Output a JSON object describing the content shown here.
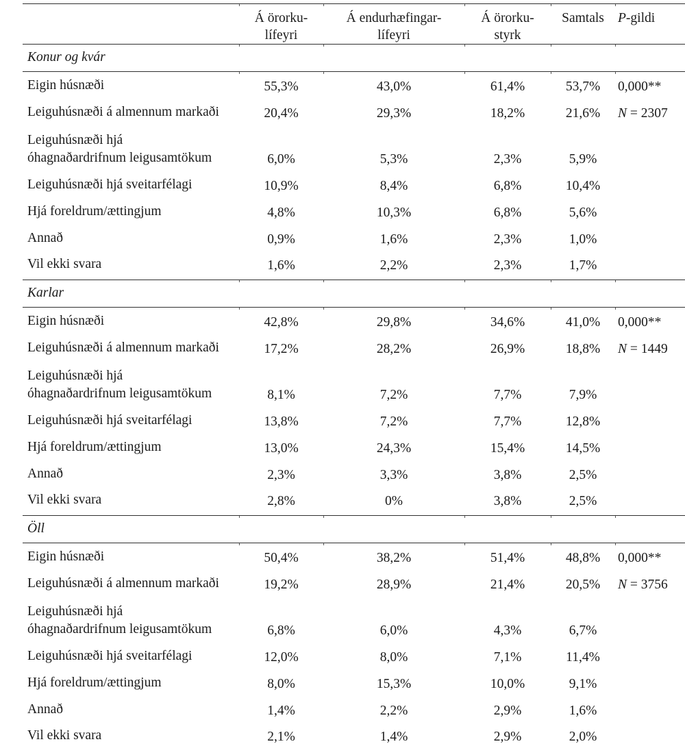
{
  "table": {
    "header": {
      "columns": [
        {
          "line1": "Á örorku-",
          "line2": "lífeyri"
        },
        {
          "line1": "Á endurhæfingar-",
          "line2": "lífeyri"
        },
        {
          "line1": "Á örorku-",
          "line2": "styrk"
        },
        {
          "line1": "Samtals",
          "line2": ""
        }
      ],
      "p_italic": "P",
      "p_rest": "-gildi"
    },
    "sections": [
      {
        "label": "Konur og kvár",
        "p_value": "0,000**",
        "n_italic": "N",
        "n_rest": " = 2307",
        "rows": [
          {
            "label_lines": [
              "Eigin húsnæði"
            ],
            "values": [
              "55,3%",
              "43,0%",
              "61,4%",
              "53,7%"
            ]
          },
          {
            "label_lines": [
              "Leiguhúsnæði á almennum markaði"
            ],
            "values": [
              "20,4%",
              "29,3%",
              "18,2%",
              "21,6%"
            ]
          },
          {
            "label_lines": [
              "Leiguhúsnæði hjá",
              "óhagnaðardrifnum leigusamtökum"
            ],
            "values": [
              "6,0%",
              "5,3%",
              "2,3%",
              "5,9%"
            ]
          },
          {
            "label_lines": [
              "Leiguhúsnæði hjá sveitarfélagi"
            ],
            "values": [
              "10,9%",
              "8,4%",
              "6,8%",
              "10,4%"
            ]
          },
          {
            "label_lines": [
              "Hjá foreldrum/ættingjum"
            ],
            "values": [
              "4,8%",
              "10,3%",
              "6,8%",
              "5,6%"
            ]
          },
          {
            "label_lines": [
              "Annað"
            ],
            "values": [
              "0,9%",
              "1,6%",
              "2,3%",
              "1,0%"
            ]
          },
          {
            "label_lines": [
              "Vil ekki svara"
            ],
            "values": [
              "1,6%",
              "2,2%",
              "2,3%",
              "1,7%"
            ]
          }
        ]
      },
      {
        "label": "Karlar",
        "p_value": "0,000**",
        "n_italic": "N",
        "n_rest": " = 1449",
        "rows": [
          {
            "label_lines": [
              "Eigin húsnæði"
            ],
            "values": [
              "42,8%",
              "29,8%",
              "34,6%",
              "41,0%"
            ]
          },
          {
            "label_lines": [
              "Leiguhúsnæði á almennum markaði"
            ],
            "values": [
              "17,2%",
              "28,2%",
              "26,9%",
              "18,8%"
            ]
          },
          {
            "label_lines": [
              "Leiguhúsnæði hjá",
              "óhagnaðardrifnum leigusamtökum"
            ],
            "values": [
              "8,1%",
              "7,2%",
              "7,7%",
              "7,9%"
            ]
          },
          {
            "label_lines": [
              "Leiguhúsnæði hjá sveitarfélagi"
            ],
            "values": [
              "13,8%",
              "7,2%",
              "7,7%",
              "12,8%"
            ]
          },
          {
            "label_lines": [
              "Hjá foreldrum/ættingjum"
            ],
            "values": [
              "13,0%",
              "24,3%",
              "15,4%",
              "14,5%"
            ]
          },
          {
            "label_lines": [
              "Annað"
            ],
            "values": [
              "2,3%",
              "3,3%",
              "3,8%",
              "2,5%"
            ]
          },
          {
            "label_lines": [
              "Vil ekki svara"
            ],
            "values": [
              "2,8%",
              "0%",
              "3,8%",
              "2,5%"
            ]
          }
        ]
      },
      {
        "label": "Öll",
        "p_value": "0,000**",
        "n_italic": "N",
        "n_rest": " = 3756",
        "rows": [
          {
            "label_lines": [
              "Eigin húsnæði"
            ],
            "values": [
              "50,4%",
              "38,2%",
              "51,4%",
              "48,8%"
            ]
          },
          {
            "label_lines": [
              "Leiguhúsnæði á almennum markaði"
            ],
            "values": [
              "19,2%",
              "28,9%",
              "21,4%",
              "20,5%"
            ]
          },
          {
            "label_lines": [
              "Leiguhúsnæði hjá",
              "óhagnaðardrifnum leigusamtökum"
            ],
            "values": [
              "6,8%",
              "6,0%",
              "4,3%",
              "6,7%"
            ]
          },
          {
            "label_lines": [
              "Leiguhúsnæði hjá sveitarfélagi"
            ],
            "values": [
              "12,0%",
              "8,0%",
              "7,1%",
              "11,4%"
            ]
          },
          {
            "label_lines": [
              "Hjá foreldrum/ættingjum"
            ],
            "values": [
              "8,0%",
              "15,3%",
              "10,0%",
              "9,1%"
            ]
          },
          {
            "label_lines": [
              "Annað"
            ],
            "values": [
              "1,4%",
              "2,2%",
              "2,9%",
              "1,6%"
            ]
          },
          {
            "label_lines": [
              "Vil ekki svara"
            ],
            "values": [
              "2,1%",
              "1,4%",
              "2,9%",
              "2,0%"
            ]
          }
        ]
      }
    ]
  }
}
